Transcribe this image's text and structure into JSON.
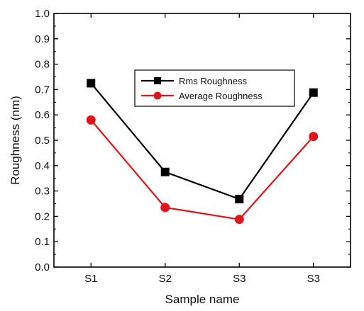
{
  "chart_data": {
    "type": "line",
    "title": "",
    "xlabel": "Sample name",
    "ylabel": "Roughness (nm)",
    "categories": [
      "S1",
      "S2",
      "S3",
      "S3"
    ],
    "ylim": [
      0.0,
      1.0
    ],
    "yticks": [
      "0.0",
      "0.1",
      "0.2",
      "0.3",
      "0.4",
      "0.5",
      "0.6",
      "0.7",
      "0.8",
      "0.9",
      "1.0"
    ],
    "grid": false,
    "legend_position": "top-center",
    "series": [
      {
        "name": "Rms Roughness",
        "values": [
          0.725,
          0.375,
          0.268,
          0.688
        ],
        "color": "#000000",
        "marker": "square"
      },
      {
        "name": "Average Roughness",
        "values": [
          0.58,
          0.235,
          0.188,
          0.515
        ],
        "color": "#e0141b",
        "marker": "circle"
      }
    ]
  }
}
